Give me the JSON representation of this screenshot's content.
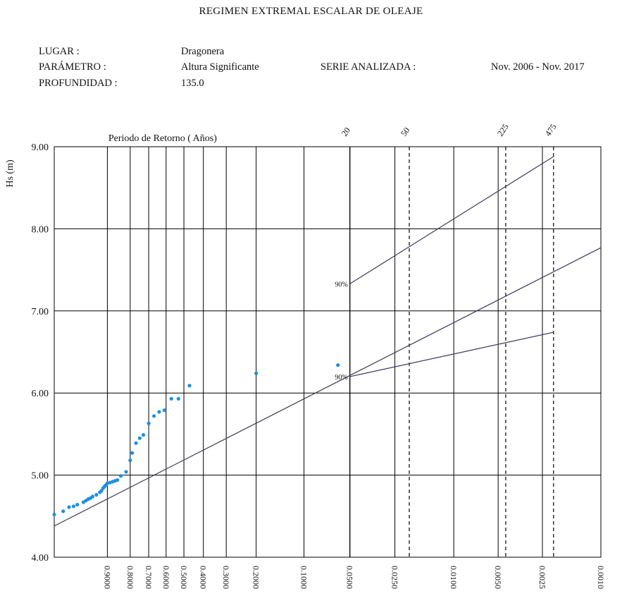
{
  "header": {
    "title": "REGIMEN EXTREMAL ESCALAR DE OLEAJE",
    "lugar_label": "LUGAR :",
    "lugar_value": "Dragonera",
    "parametro_label": "PARÁMETRO :",
    "parametro_value": "Altura Significante",
    "serie_label": "SERIE ANALIZADA :",
    "serie_value": "Nov. 2006 - Nov. 2017",
    "profundidad_label": "PROFUNDIDAD :",
    "profundidad_value": "135.0"
  },
  "chart_data": {
    "type": "scatter",
    "ylabel": "Hs (m)",
    "top_axis_title": "Periodo de Retorno ( Años)",
    "ylim": [
      4.0,
      9.0
    ],
    "yticks": [
      "9.00",
      "8.00",
      "7.00",
      "6.00",
      "5.00",
      "4.00"
    ],
    "yticks_values": [
      9,
      8,
      7,
      6,
      5,
      4
    ],
    "x_ticks": [
      {
        "label": "0.9000",
        "p": 0.9,
        "style": "solid"
      },
      {
        "label": "0.8000",
        "p": 0.8,
        "style": "solid"
      },
      {
        "label": "0.7000",
        "p": 0.7,
        "style": "solid"
      },
      {
        "label": "0.6000",
        "p": 0.6,
        "style": "solid"
      },
      {
        "label": "0.5000",
        "p": 0.5,
        "style": "solid"
      },
      {
        "label": "0.4000",
        "p": 0.4,
        "style": "solid"
      },
      {
        "label": "0.3000",
        "p": 0.3,
        "style": "solid"
      },
      {
        "label": "0.2000",
        "p": 0.2,
        "style": "solid"
      },
      {
        "label": "0.1000",
        "p": 0.1,
        "style": "solid"
      },
      {
        "label": "0.0500",
        "p": 0.05,
        "style": "solid"
      },
      {
        "label": "0.0250",
        "p": 0.025,
        "style": "solid"
      },
      {
        "label": "0.0100",
        "p": 0.01,
        "style": "solid"
      },
      {
        "label": "0.0050",
        "p": 0.005,
        "style": "solid"
      },
      {
        "label": "0.0025",
        "p": 0.0025,
        "style": "solid"
      },
      {
        "label": "0.0010",
        "p": 0.001,
        "style": "solid"
      }
    ],
    "return_periods": [
      {
        "label": "20",
        "p": 0.05,
        "style": "solid"
      },
      {
        "label": "50",
        "p": 0.02,
        "style": "dashed"
      },
      {
        "label": "225",
        "p": 0.00444,
        "style": "dashed"
      },
      {
        "label": "475",
        "p": 0.0021,
        "style": "dashed"
      }
    ],
    "fit_line": [
      {
        "p": 0.995,
        "y": 4.38
      },
      {
        "p": 0.001,
        "y": 7.77
      }
    ],
    "confidence_upper": {
      "label": "90%",
      "points": [
        {
          "p": 0.05,
          "y": 7.33
        },
        {
          "p": 0.0021,
          "y": 8.88
        }
      ]
    },
    "confidence_lower": {
      "label": "90%",
      "points": [
        {
          "p": 0.05,
          "y": 6.2
        },
        {
          "p": 0.0021,
          "y": 6.74
        }
      ]
    },
    "points": [
      {
        "p": 0.995,
        "y": 4.52
      },
      {
        "p": 0.99,
        "y": 4.56
      },
      {
        "p": 0.985,
        "y": 4.61
      },
      {
        "p": 0.98,
        "y": 4.62
      },
      {
        "p": 0.975,
        "y": 4.64
      },
      {
        "p": 0.965,
        "y": 4.67
      },
      {
        "p": 0.96,
        "y": 4.69
      },
      {
        "p": 0.955,
        "y": 4.71
      },
      {
        "p": 0.95,
        "y": 4.72
      },
      {
        "p": 0.945,
        "y": 4.74
      },
      {
        "p": 0.935,
        "y": 4.76
      },
      {
        "p": 0.925,
        "y": 4.79
      },
      {
        "p": 0.92,
        "y": 4.81
      },
      {
        "p": 0.915,
        "y": 4.84
      },
      {
        "p": 0.91,
        "y": 4.86
      },
      {
        "p": 0.905,
        "y": 4.88
      },
      {
        "p": 0.9,
        "y": 4.9
      },
      {
        "p": 0.89,
        "y": 4.91
      },
      {
        "p": 0.88,
        "y": 4.92
      },
      {
        "p": 0.87,
        "y": 4.93
      },
      {
        "p": 0.86,
        "y": 4.94
      },
      {
        "p": 0.845,
        "y": 4.99
      },
      {
        "p": 0.82,
        "y": 5.04
      },
      {
        "p": 0.8,
        "y": 5.18
      },
      {
        "p": 0.79,
        "y": 5.27
      },
      {
        "p": 0.77,
        "y": 5.39
      },
      {
        "p": 0.75,
        "y": 5.45
      },
      {
        "p": 0.73,
        "y": 5.49
      },
      {
        "p": 0.7,
        "y": 5.63
      },
      {
        "p": 0.67,
        "y": 5.72
      },
      {
        "p": 0.64,
        "y": 5.77
      },
      {
        "p": 0.61,
        "y": 5.79
      },
      {
        "p": 0.57,
        "y": 5.93
      },
      {
        "p": 0.53,
        "y": 5.93
      },
      {
        "p": 0.47,
        "y": 6.09
      },
      {
        "p": 0.2,
        "y": 6.24
      },
      {
        "p": 0.06,
        "y": 6.34
      }
    ]
  },
  "colors": {
    "points": "#1e90e0",
    "lines": "#3a3a55",
    "grid": "#000000"
  }
}
